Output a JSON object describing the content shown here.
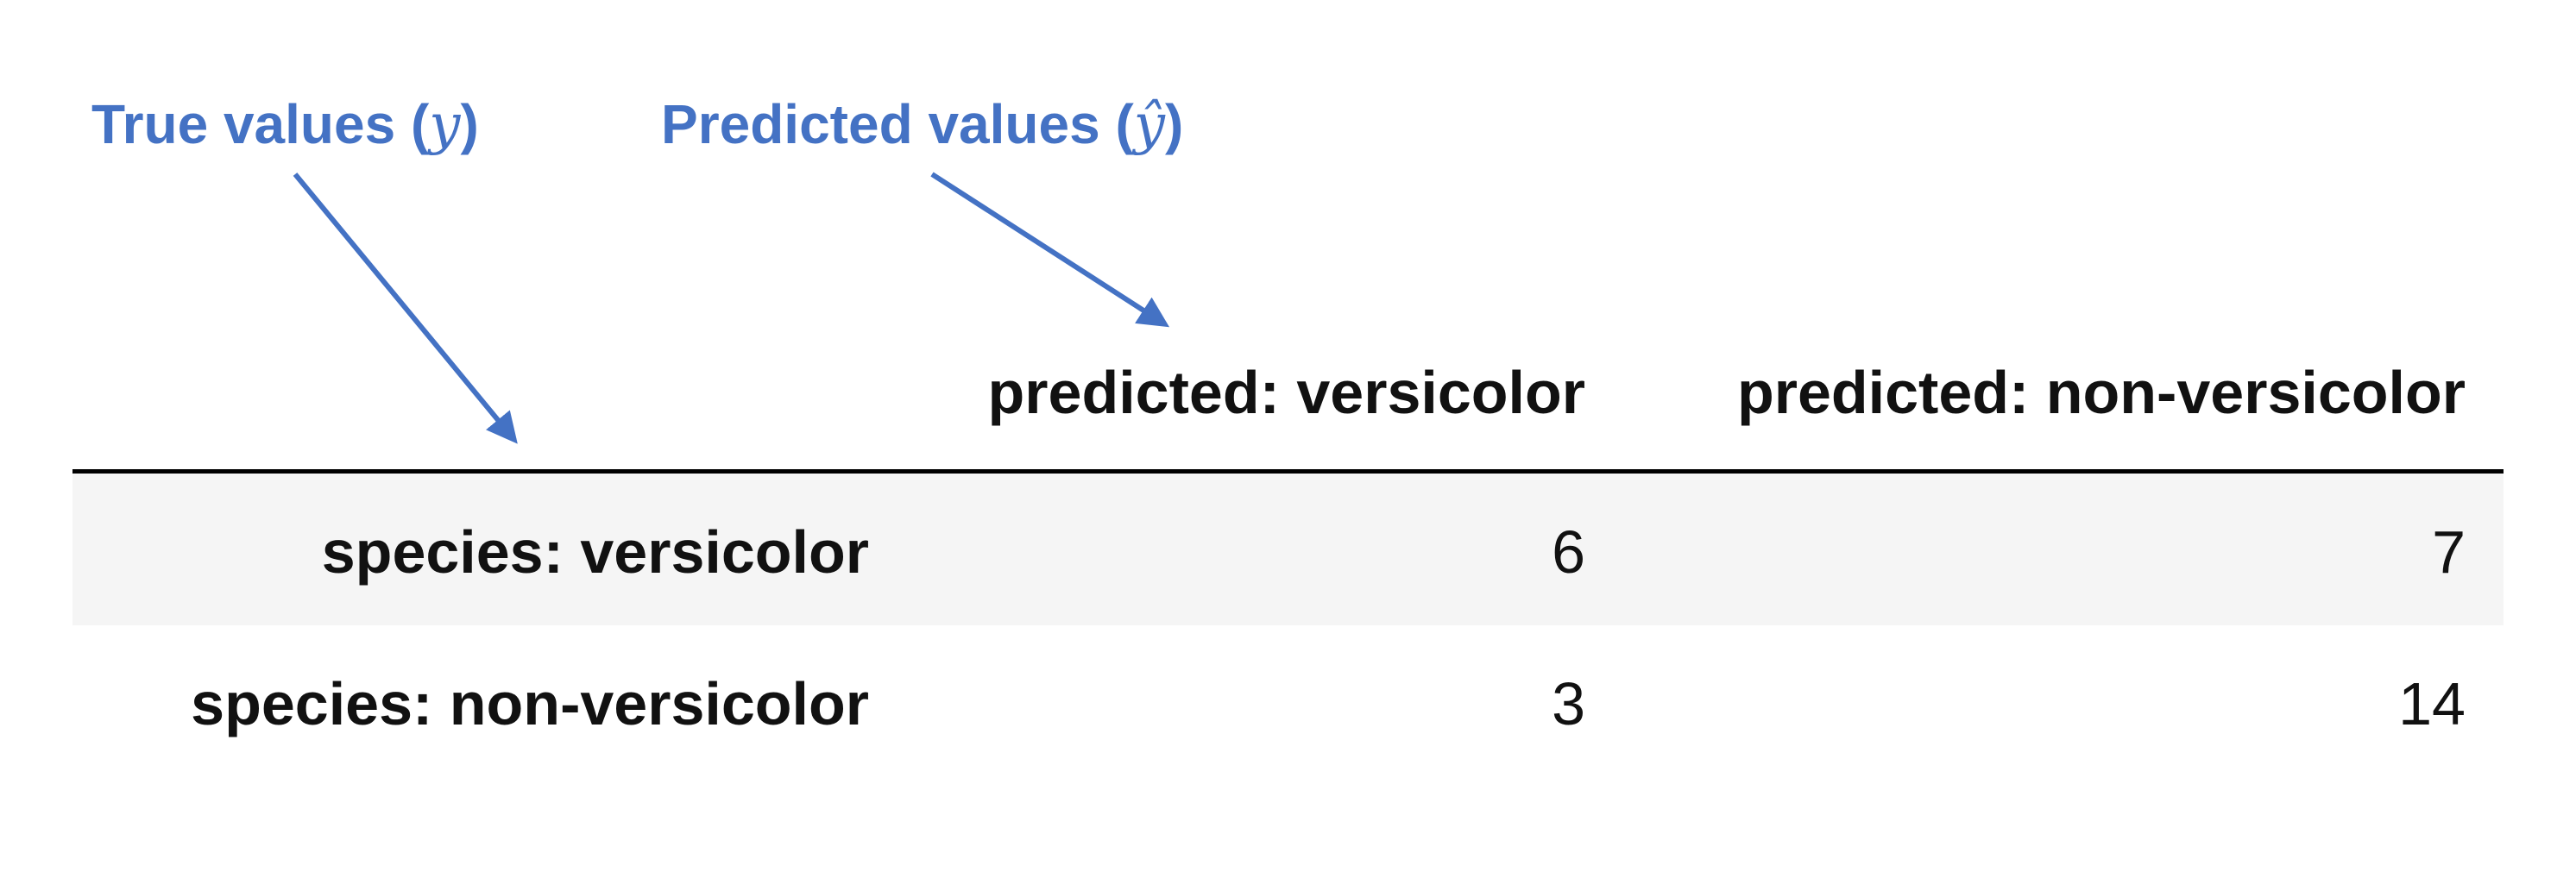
{
  "annotations": {
    "true_values": {
      "text": "True values (",
      "symbol": "y",
      "close": ")"
    },
    "predicted_values": {
      "text": "Predicted values (",
      "symbol": "ŷ",
      "close": ")"
    }
  },
  "colors": {
    "annotation": "#4472c4",
    "table_text": "#111111",
    "striped_row": "#f5f5f5",
    "header_rule": "#000000"
  },
  "table": {
    "columns": [
      "predicted: versicolor",
      "predicted: non-versicolor"
    ],
    "rows": [
      {
        "label": "species: versicolor",
        "values": [
          "6",
          "7"
        ]
      },
      {
        "label": "species: non-versicolor",
        "values": [
          "3",
          "14"
        ]
      }
    ]
  }
}
